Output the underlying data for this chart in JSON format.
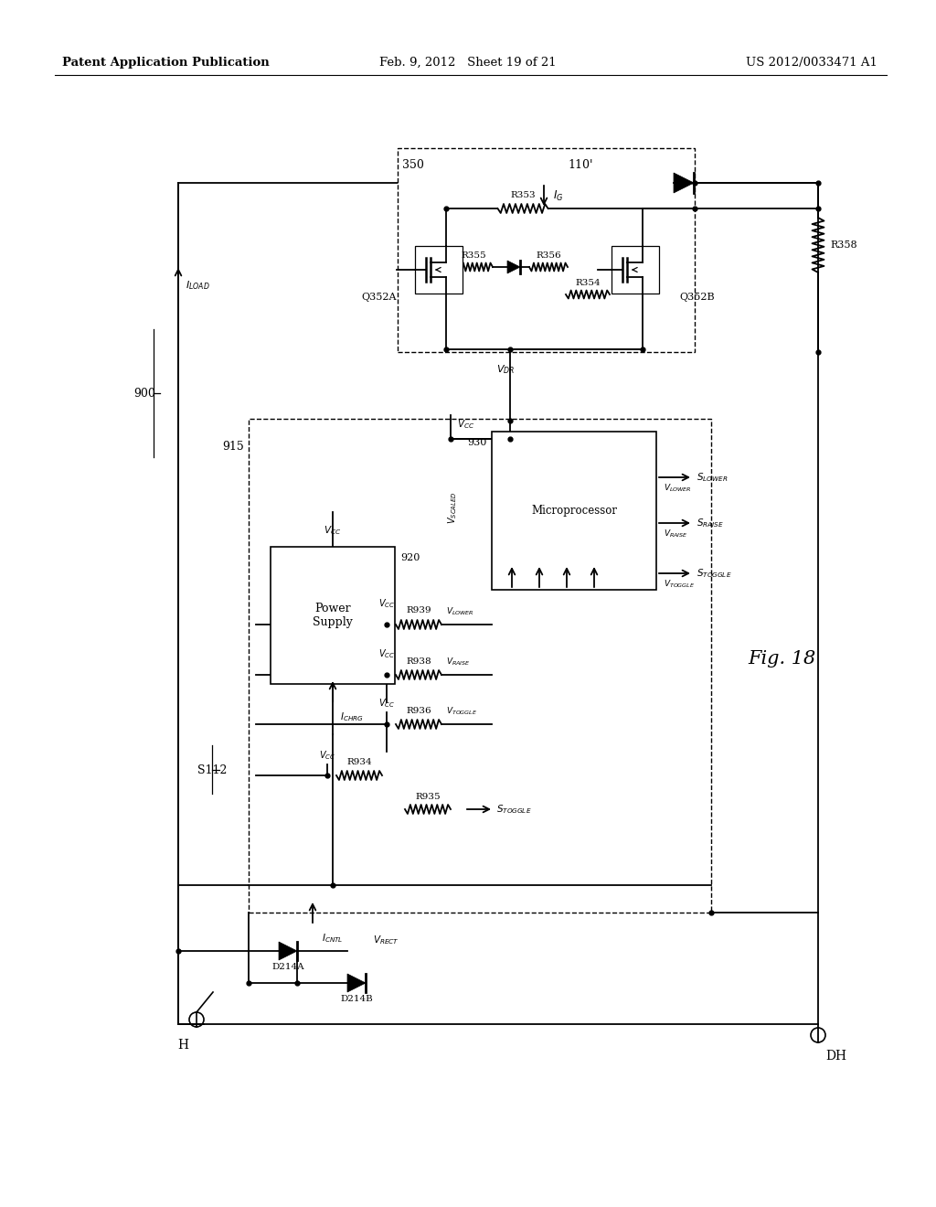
{
  "bg": "#ffffff",
  "header_left": "Patent Application Publication",
  "header_mid": "Feb. 9, 2012   Sheet 19 of 21",
  "header_right": "US 2012/0033471 A1",
  "fig_label": "Fig. 18"
}
